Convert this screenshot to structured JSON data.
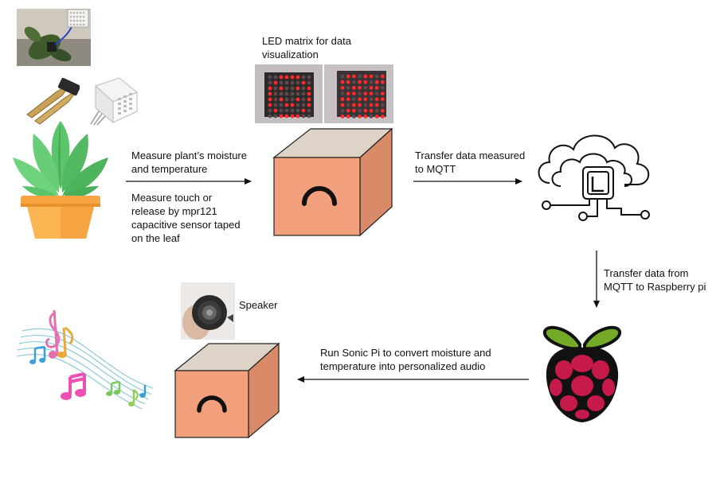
{
  "labels": {
    "measure_moisture": [
      "Measure plant’s moisture",
      "and temperature"
    ],
    "measure_touch": [
      "Measure touch or",
      "release by mpr121",
      "capacitive sensor taped",
      "on the leaf"
    ],
    "led_matrix": [
      "LED matrix for data",
      "visualization"
    ],
    "transfer_mqtt": [
      "Transfer data measured",
      "to MQTT"
    ],
    "transfer_pi": [
      "Transfer data from",
      "MQTT to Raspberry pi"
    ],
    "speaker": "Speaker",
    "sonic_pi": [
      "Run Sonic Pi to convert moisture and",
      "temperature into personalized audio"
    ]
  },
  "icons": {
    "plant": "potted-plant-icon",
    "cloud": "cloud-computing-icon",
    "raspberry": "raspberry-pi-logo",
    "music": "music-notes-icon",
    "box": "microcontroller-box-icon"
  },
  "colors": {
    "box_front": "#f2a07b",
    "box_top": "#ddd3c6",
    "box_side": "#d98a68",
    "leaf_green": "#5cc46b",
    "pot_orange": "#f7a542",
    "raspberry_red": "#c51a4a",
    "raspberry_leaf": "#75a928",
    "led_red": "#ff2a2a"
  }
}
